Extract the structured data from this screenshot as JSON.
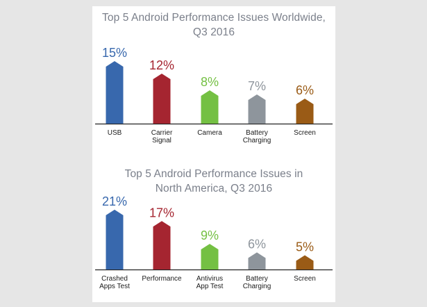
{
  "chart_data": [
    {
      "type": "bar",
      "title_lines": [
        "Top 5 Android Performance Issues Worldwide,",
        "Q3 2016"
      ],
      "categories": [
        [
          "USB"
        ],
        [
          "Carrier",
          "Signal"
        ],
        [
          "Camera"
        ],
        [
          "Battery",
          "Charging"
        ],
        [
          "Screen"
        ]
      ],
      "values": [
        15,
        12,
        8,
        7,
        6
      ],
      "value_labels": [
        "15%",
        "12%",
        "8%",
        "7%",
        "6%"
      ],
      "colors": [
        "#3868ad",
        "#a52530",
        "#74c043",
        "#8e959c",
        "#9a5b16"
      ],
      "ylim": [
        0,
        22
      ]
    },
    {
      "type": "bar",
      "title_lines": [
        "Top 5 Android Performance Issues in",
        "North America, Q3 2016"
      ],
      "categories": [
        [
          "Crashed",
          "Apps Test"
        ],
        [
          "Performance"
        ],
        [
          "Antivirus",
          "App Test"
        ],
        [
          "Battery",
          "Charging"
        ],
        [
          "Screen"
        ]
      ],
      "values": [
        21,
        17,
        9,
        6,
        5
      ],
      "value_labels": [
        "21%",
        "17%",
        "9%",
        "6%",
        "5%"
      ],
      "colors": [
        "#3868ad",
        "#a52530",
        "#74c043",
        "#8e959c",
        "#9a5b16"
      ],
      "ylim": [
        0,
        22
      ]
    }
  ]
}
